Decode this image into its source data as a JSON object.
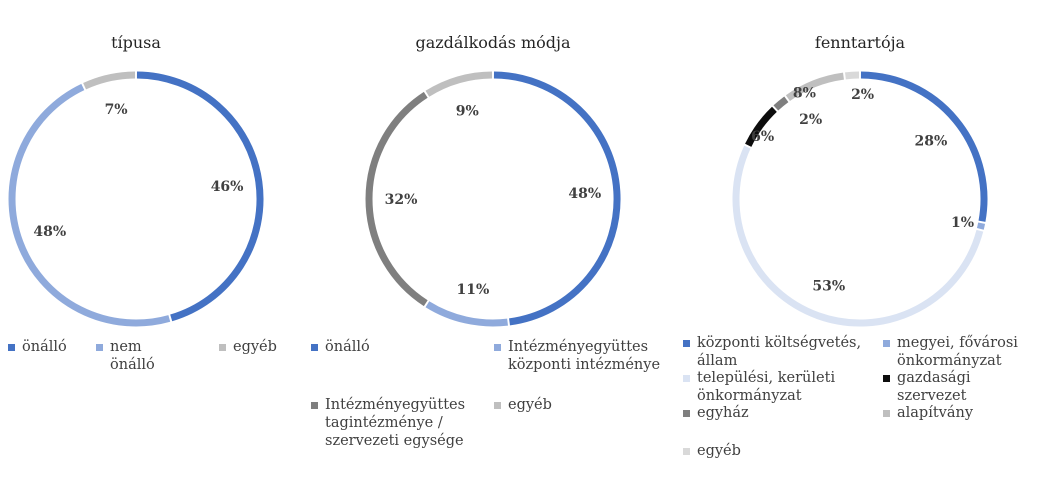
{
  "colors": {
    "blue": "#4472C4",
    "light_blue": "#8FAADC",
    "pale_blue": "#DAE3F3",
    "gray": "#BFBFBF",
    "dark_gray": "#7F7F7F",
    "black": "#0D0D0D",
    "light_gray": "#D9D9D9"
  },
  "chart_data": [
    {
      "type": "pie",
      "variant": "donut",
      "title": "típusa",
      "categories": [
        "önálló",
        "nem önálló",
        "egyéb"
      ],
      "values": [
        46,
        48,
        7
      ],
      "labels": [
        "46%",
        "48%",
        "7%"
      ],
      "colors": [
        "#4472C4",
        "#8FAADC",
        "#BFBFBF"
      ],
      "legend": "bottom"
    },
    {
      "type": "pie",
      "variant": "donut",
      "title": "gazdálkodás módja",
      "categories": [
        "önálló",
        "Intézményegyüttes központi intézménye",
        "Intézményegyüttes tagintézménye / szervezeti egysége",
        "egyéb"
      ],
      "values": [
        48,
        11,
        32,
        9
      ],
      "labels": [
        "48%",
        "11%",
        "32%",
        "9%"
      ],
      "colors": [
        "#4472C4",
        "#8FAADC",
        "#7F7F7F",
        "#BFBFBF"
      ],
      "legend": "bottom"
    },
    {
      "type": "pie",
      "variant": "donut",
      "title": "fenntartója",
      "categories": [
        "központi költségvetés, állam",
        "megyei, fővárosi önkormányzat",
        "települési, kerületi önkormányzat",
        "gazdasági szervezet",
        "egyház",
        "alapítvány",
        "egyéb"
      ],
      "values": [
        28,
        1,
        53,
        6,
        2,
        8,
        2
      ],
      "labels": [
        "28%",
        "1%",
        "53%",
        "6%",
        "2%",
        "8%",
        "2%"
      ],
      "colors": [
        "#4472C4",
        "#8FAADC",
        "#DAE3F3",
        "#0D0D0D",
        "#7F7F7F",
        "#BFBFBF",
        "#D9D9D9"
      ],
      "legend": "bottom"
    }
  ]
}
